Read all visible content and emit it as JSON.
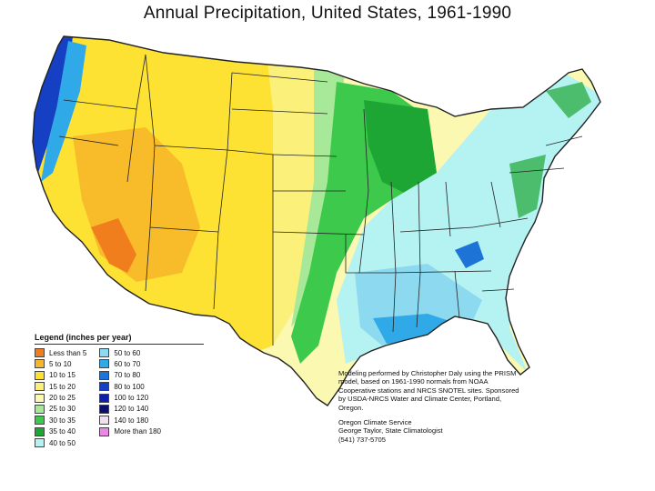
{
  "title": "Annual Precipitation, United States, 1961-1990",
  "legend": {
    "title": "Legend (inches per year)",
    "items": [
      {
        "label": "Less than 5",
        "color": "#f07e1c"
      },
      {
        "label": "5 to 10",
        "color": "#f7b52a"
      },
      {
        "label": "10 to 15",
        "color": "#fde233"
      },
      {
        "label": "15 to 20",
        "color": "#fbf07a"
      },
      {
        "label": "20 to 25",
        "color": "#fbf8b2"
      },
      {
        "label": "25 to 30",
        "color": "#a7e899"
      },
      {
        "label": "30 to 35",
        "color": "#3cc94c"
      },
      {
        "label": "35 to 40",
        "color": "#1ea635"
      },
      {
        "label": "40 to 50",
        "color": "#b5f2f2"
      },
      {
        "label": "50 to 60",
        "color": "#8ddaf0"
      },
      {
        "label": "60 to 70",
        "color": "#2fa9e8"
      },
      {
        "label": "70 to 80",
        "color": "#1e73d6"
      },
      {
        "label": "80 to 100",
        "color": "#1640c3"
      },
      {
        "label": "100 to 120",
        "color": "#0e1ea6"
      },
      {
        "label": "120 to 140",
        "color": "#0a0f6a"
      },
      {
        "label": "140 to 180",
        "color": "#f1e0ee"
      },
      {
        "label": "More than 180",
        "color": "#e88ae2"
      }
    ]
  },
  "credits": {
    "line1": "Modeling performed by Christopher Daly using the PRISM model, based on 1961-1990 normals from NOAA Cooperative stations and NRCS SNOTEL sites. Sponsored by USDA-NRCS Water and Climate Center, Portland, Oregon.",
    "line2": "Oregon Climate Service",
    "line3": "George Taylor, State Climatologist",
    "line4": "(541) 737-5705"
  },
  "colors": {
    "arid": "#f07e1c",
    "dry": "#f7b52a",
    "semi_dry": "#fde233",
    "plains": "#fbf07a",
    "plains_light": "#fbf8b2",
    "transition": "#a7e899",
    "green": "#3cc94c",
    "dark_green": "#1ea635",
    "humid": "#b5f2f2",
    "wet": "#8ddaf0",
    "very_wet": "#2fa9e8",
    "coast_wet": "#1640c3",
    "border": "#222222"
  }
}
